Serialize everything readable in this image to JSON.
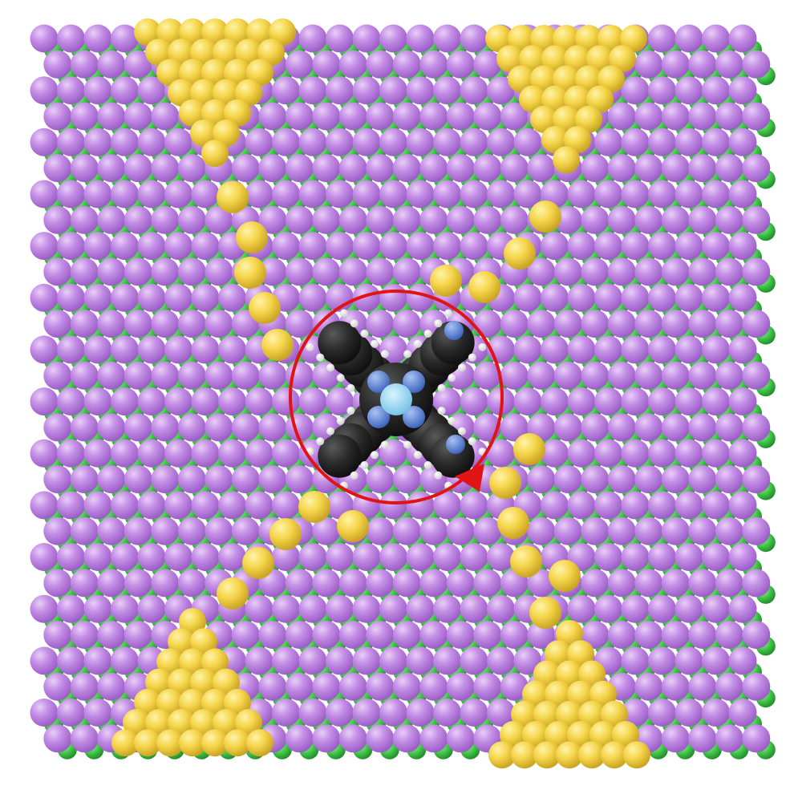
{
  "scene": {
    "description_visible_text": "",
    "colors": {
      "background": "#ffffff",
      "substrate_atom": "#b97ee0",
      "substrate_under_atom": "#3fc94a",
      "tip_gold": "#f6d64a",
      "molecule_carbon": "#2a2a2a",
      "molecule_hydrogen": "#f2f2f2",
      "molecule_nitrogen": "#5b84d6",
      "molecule_center": "#8fd3f0",
      "rotation_arrow": "#e01414"
    },
    "elements": {
      "substrate": "nacl-like-lattice",
      "tips": [
        "top-left-tip",
        "top-right-tip",
        "bottom-left-tip",
        "bottom-right-tip"
      ],
      "molecule": "porphyrin-like-molecule",
      "annotation": "clockwise-rotation-arrow"
    }
  }
}
